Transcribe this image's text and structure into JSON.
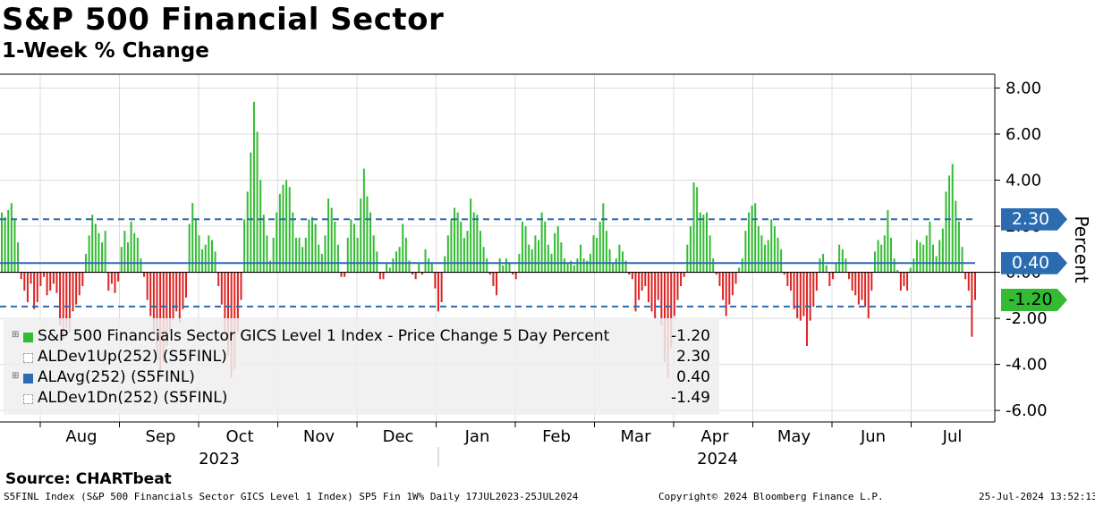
{
  "title": "S&P 500 Financial Sector",
  "subtitle": "1-Week % Change",
  "source": "Source: CHARTbeat",
  "footer": {
    "left": "S5FINL Index (S&P 500 Financials Sector GICS Level 1 Index) SP5 Fin 1W% Daily 17JUL2023-25JUL2024",
    "center": "Copyright© 2024 Bloomberg Finance L.P.",
    "right": "25-Jul-2024 13:52:13"
  },
  "legend": [
    {
      "label": "S&P 500 Financials Sector GICS Level 1 Index - Price Change 5 Day Percent",
      "value": "-1.20",
      "color": "#33bb33",
      "style": "solid"
    },
    {
      "label": "ALDev1Up(252) (S5FINL)",
      "value": "2.30",
      "color": "#2b6cb0",
      "style": "dashed"
    },
    {
      "label": "ALAvg(252) (S5FINL)",
      "value": "0.40",
      "color": "#2b6cb0",
      "style": "solid"
    },
    {
      "label": "ALDev1Dn(252) (S5FINL)",
      "value": "-1.49",
      "color": "#2b6cb0",
      "style": "dashed"
    }
  ],
  "tags": [
    {
      "text": "2.30",
      "value": 2.3,
      "color": "#2b6cb0"
    },
    {
      "text": "0.40",
      "value": 0.4,
      "color": "#2b6cb0"
    },
    {
      "text": "-1.20",
      "value": -1.2,
      "color": "#33bb33"
    }
  ],
  "chart_data": {
    "type": "bar",
    "title": "S&P 500 Financial Sector",
    "subtitle": "1-Week % Change",
    "ylabel": "Percent",
    "ylim": [
      -6.5,
      8.6
    ],
    "yticks": [
      8.0,
      6.0,
      4.0,
      2.0,
      0.0,
      -2.0,
      -4.0,
      -6.0
    ],
    "ytick_labels": [
      "8.00",
      "6.00",
      "4.00",
      "2.00",
      "0.00",
      "-2.00",
      "-4.00",
      "-6.00"
    ],
    "months": [
      "Aug",
      "Sep",
      "Oct",
      "Nov",
      "Dec",
      "Jan",
      "Feb",
      "Mar",
      "Apr",
      "May",
      "Jun",
      "Jul"
    ],
    "years": [
      "2023",
      "2024"
    ],
    "reference_lines": [
      {
        "name": "ALDev1Up(252)",
        "value": 2.3,
        "style": "dashed"
      },
      {
        "name": "ALAvg(252)",
        "value": 0.4,
        "style": "solid"
      },
      {
        "name": "ALDev1Dn(252)",
        "value": -1.49,
        "style": "dashed"
      }
    ],
    "up_color": "#33bb33",
    "down_color": "#dd2222",
    "series_name": "Price Change 5 Day Percent",
    "start_date": "17JUL2023",
    "end_date": "25JUL2024",
    "values": [
      2.6,
      2.4,
      2.7,
      3.0,
      2.3,
      1.3,
      -0.3,
      -0.8,
      -1.3,
      -0.5,
      -1.6,
      -1.3,
      -0.6,
      -0.2,
      -1.0,
      -0.8,
      -0.5,
      -0.9,
      -2.3,
      -2.9,
      -2.4,
      -2.6,
      -1.7,
      -1.4,
      -1.0,
      -0.6,
      0.8,
      1.6,
      2.5,
      2.1,
      1.7,
      1.3,
      1.8,
      -0.8,
      -0.5,
      -0.9,
      -0.4,
      1.1,
      1.8,
      1.3,
      2.2,
      1.7,
      1.5,
      0.6,
      -0.2,
      -1.2,
      -1.9,
      -2.6,
      -3.8,
      -4.4,
      -3.9,
      -3.2,
      -2.6,
      -2.1,
      -1.7,
      -2.2,
      -1.6,
      -1.1,
      2.1,
      3.0,
      2.3,
      1.6,
      1.0,
      1.2,
      1.6,
      1.4,
      0.9,
      -0.6,
      -1.4,
      -2.6,
      -3.6,
      -4.6,
      -4.2,
      -2.6,
      -1.2,
      2.3,
      3.5,
      5.2,
      7.4,
      6.1,
      4.0,
      2.5,
      1.6,
      0.5,
      1.5,
      2.6,
      3.4,
      3.8,
      4.0,
      3.7,
      2.6,
      1.5,
      1.5,
      1.1,
      1.5,
      2.3,
      2.4,
      2.1,
      1.2,
      0.8,
      1.6,
      3.2,
      2.8,
      2.2,
      1.2,
      -0.2,
      -0.2,
      1.5,
      2.3,
      2.1,
      1.5,
      3.2,
      4.5,
      3.3,
      2.6,
      1.6,
      0.9,
      -0.3,
      -0.3,
      0.4,
      0.2,
      0.6,
      0.9,
      1.1,
      2.1,
      1.5,
      0.5,
      -0.1,
      -0.3,
      0.4,
      -0.1,
      1.0,
      0.6,
      0.4,
      -0.7,
      -1.7,
      -1.3,
      0.7,
      1.6,
      2.3,
      2.8,
      2.6,
      2.2,
      1.5,
      1.8,
      3.2,
      2.6,
      2.5,
      1.8,
      1.1,
      0.6,
      -0.1,
      -0.6,
      -1.0,
      0.6,
      0.3,
      0.6,
      0.4,
      -0.1,
      -0.3,
      0.8,
      2.2,
      2.0,
      1.2,
      1.0,
      1.6,
      1.4,
      2.6,
      2.2,
      1.2,
      0.8,
      1.7,
      2.0,
      1.3,
      0.6,
      0.4,
      0.5,
      0.3,
      0.6,
      1.2,
      0.6,
      0.5,
      0.8,
      1.6,
      1.5,
      2.2,
      3.0,
      1.8,
      1.0,
      0.4,
      0.6,
      1.2,
      0.9,
      0.5,
      -0.1,
      -0.3,
      -1.7,
      -1.2,
      -0.8,
      -0.6,
      -1.3,
      -1.7,
      -2.0,
      -1.2,
      -2.3,
      -3.9,
      -4.6,
      -3.3,
      -1.9,
      -1.2,
      -0.6,
      -0.2,
      1.2,
      2.0,
      3.9,
      3.7,
      2.6,
      2.5,
      2.6,
      1.6,
      0.6,
      -0.1,
      -0.6,
      -1.2,
      -1.9,
      -1.4,
      -1.0,
      -0.5,
      0.2,
      0.6,
      1.8,
      2.6,
      2.9,
      3.0,
      2.0,
      1.6,
      1.2,
      1.4,
      2.3,
      2.0,
      1.5,
      1.0,
      -0.1,
      -0.6,
      -0.8,
      -1.6,
      -2.0,
      -2.1,
      -1.9,
      -3.2,
      -2.1,
      -1.5,
      -0.8,
      0.6,
      0.8,
      0.3,
      -0.6,
      -0.3,
      0.4,
      1.2,
      1.0,
      0.6,
      -0.3,
      -0.8,
      -1.0,
      -1.4,
      -1.2,
      -1.5,
      -2.0,
      -0.8,
      0.9,
      1.4,
      1.2,
      1.6,
      2.7,
      1.5,
      0.6,
      0.1,
      -0.8,
      -0.6,
      -0.8,
      0.2,
      0.6,
      1.4,
      1.3,
      1.2,
      1.6,
      2.2,
      1.2,
      0.7,
      1.4,
      1.9,
      3.5,
      4.2,
      4.7,
      3.1,
      2.2,
      1.1,
      -0.3,
      -0.8,
      -2.8,
      -1.2
    ]
  }
}
